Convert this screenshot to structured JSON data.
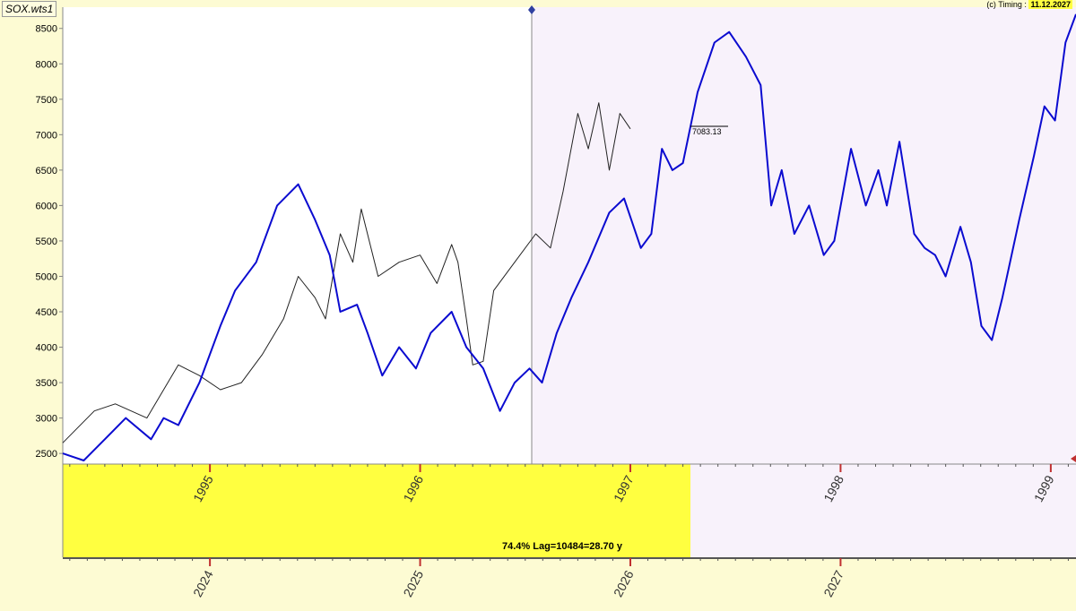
{
  "header": {
    "symbol": "SOX.wts1",
    "credit_prefix": "(c) Timing : ",
    "credit_date": "11.12.2027"
  },
  "annotations": {
    "last_value": "7083.13",
    "lag_text": "74.4% Lag=10484=28.70 y"
  },
  "colors": {
    "background": "#fdfbd3",
    "past_area": "#ffffff",
    "future_area": "#f8f2fb",
    "lower_highlight": "#ffff40",
    "black_series": "#222222",
    "blue_series": "#0b0bd0",
    "axis": "#888888"
  },
  "chart_data": {
    "type": "line",
    "ylim": [
      2350,
      8800
    ],
    "y_ticks": [
      2500,
      3000,
      3500,
      4000,
      4500,
      5000,
      5500,
      6000,
      6500,
      7000,
      7500,
      8000,
      8500
    ],
    "x_axis_upper": {
      "ticks": [
        "1995",
        "1996",
        "1997",
        "1998",
        "1999"
      ],
      "range": [
        1994.3,
        1999.12
      ]
    },
    "x_axis_lower": {
      "ticks": [
        "2024",
        "2025",
        "2026",
        "2027"
      ],
      "range": [
        2023.3,
        2028.12
      ]
    },
    "series": [
      {
        "color": "black",
        "axis": "lower",
        "x": [
          2023.3,
          2023.45,
          2023.55,
          2023.7,
          2023.85,
          2023.95,
          2024.05,
          2024.15,
          2024.25,
          2024.35,
          2024.42,
          2024.5,
          2024.55,
          2024.62,
          2024.68,
          2024.72,
          2024.8,
          2024.9,
          2025.0,
          2025.08,
          2025.15,
          2025.18,
          2025.22,
          2025.25,
          2025.3,
          2025.35,
          2025.45,
          2025.55,
          2025.62,
          2025.68,
          2025.75,
          2025.8,
          2025.85,
          2025.9,
          2025.95,
          2026.0
        ],
        "y": [
          2650,
          3100,
          3200,
          3000,
          3750,
          3600,
          3400,
          3500,
          3900,
          4400,
          5000,
          4700,
          4400,
          5600,
          5200,
          5950,
          5000,
          5200,
          5300,
          4900,
          5450,
          5200,
          4400,
          3750,
          3800,
          4800,
          5200,
          5600,
          5400,
          6200,
          7300,
          6800,
          7450,
          6500,
          7300,
          7083.13
        ]
      },
      {
        "color": "blue",
        "axis": "upper",
        "x": [
          1994.3,
          1994.4,
          1994.5,
          1994.6,
          1994.72,
          1994.78,
          1994.85,
          1994.95,
          1995.05,
          1995.12,
          1995.22,
          1995.32,
          1995.42,
          1995.5,
          1995.57,
          1995.62,
          1995.7,
          1995.75,
          1995.82,
          1995.9,
          1995.98,
          1996.05,
          1996.15,
          1996.22,
          1996.3,
          1996.38,
          1996.45,
          1996.52,
          1996.58,
          1996.65,
          1996.72,
          1996.8,
          1996.9,
          1996.97,
          1997.05,
          1997.1,
          1997.15,
          1997.2,
          1997.25,
          1997.32,
          1997.4,
          1997.47,
          1997.55,
          1997.62,
          1997.67,
          1997.72,
          1997.78,
          1997.85,
          1997.92,
          1997.97,
          1998.05,
          1998.12,
          1998.18,
          1998.22,
          1998.28,
          1998.35,
          1998.4,
          1998.45,
          1998.5,
          1998.57,
          1998.62,
          1998.67,
          1998.72,
          1998.77,
          1998.85,
          1998.92,
          1998.97,
          1999.02,
          1999.07,
          1999.12
        ],
        "y": [
          2500,
          2400,
          2700,
          3000,
          2700,
          3000,
          2900,
          3500,
          4300,
          4800,
          5200,
          6000,
          6300,
          5800,
          5300,
          4500,
          4600,
          4200,
          3600,
          4000,
          3700,
          4200,
          4500,
          4000,
          3700,
          3100,
          3500,
          3700,
          3500,
          4200,
          4700,
          5200,
          5900,
          6100,
          5400,
          5600,
          6800,
          6500,
          6600,
          7600,
          8300,
          8450,
          8100,
          7700,
          6000,
          6500,
          5600,
          6000,
          5300,
          5500,
          6800,
          6000,
          6500,
          6000,
          6900,
          5600,
          5400,
          5300,
          5000,
          5700,
          5200,
          4300,
          4100,
          4700,
          5800,
          6700,
          7400,
          7200,
          8300,
          8700
        ]
      }
    ]
  }
}
